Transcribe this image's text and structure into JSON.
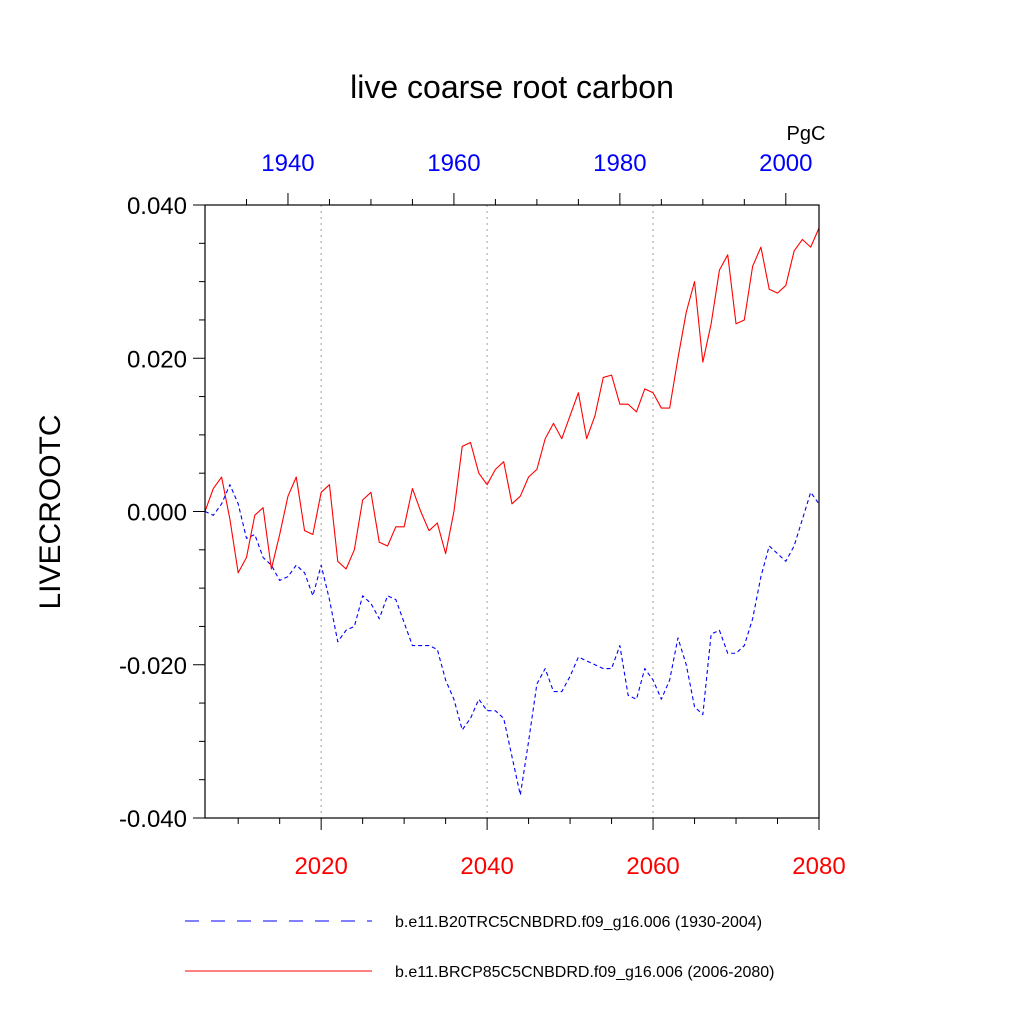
{
  "chart_data": {
    "type": "line",
    "title": "live coarse root carbon",
    "ylabel": "LIVECROOTC",
    "units": "PgC",
    "ylim": [
      -0.04,
      0.04
    ],
    "y_ticks": [
      "-0.040",
      "-0.020",
      "0.000",
      "0.020",
      "0.040"
    ],
    "y_tick_values": [
      -0.04,
      -0.02,
      0.0,
      0.02,
      0.04
    ],
    "x_bottom": {
      "range": [
        2006,
        2080
      ],
      "ticks": [
        "2020",
        "2040",
        "2060",
        "2080"
      ],
      "tick_values": [
        2020,
        2040,
        2060,
        2080
      ],
      "color": "#ff0000"
    },
    "x_top": {
      "range": [
        1930,
        2004
      ],
      "ticks": [
        "1940",
        "1960",
        "1980",
        "2000"
      ],
      "tick_values": [
        1940,
        1960,
        1980,
        2000
      ],
      "color": "#0000ff"
    },
    "gridlines_x": [
      2020,
      2040,
      2060
    ],
    "series": [
      {
        "name": "b.e11.B20TRC5CNBDRD.f09_g16.006 (1930-2004)",
        "axis": "top",
        "color": "#0000ff",
        "dash": "dashed",
        "start_year": 1930,
        "values": [
          0.0,
          -0.0005,
          0.001,
          0.0035,
          0.001,
          -0.0035,
          -0.003,
          -0.006,
          -0.007,
          -0.009,
          -0.0085,
          -0.007,
          -0.008,
          -0.011,
          -0.007,
          -0.0115,
          -0.017,
          -0.0155,
          -0.015,
          -0.011,
          -0.012,
          -0.014,
          -0.011,
          -0.0115,
          -0.0145,
          -0.0175,
          -0.0175,
          -0.0175,
          -0.018,
          -0.022,
          -0.0245,
          -0.0285,
          -0.027,
          -0.0245,
          -0.026,
          -0.026,
          -0.027,
          -0.032,
          -0.037,
          -0.03,
          -0.0225,
          -0.0205,
          -0.0235,
          -0.0235,
          -0.0215,
          -0.019,
          -0.0195,
          -0.02,
          -0.0205,
          -0.0205,
          -0.0175,
          -0.024,
          -0.0245,
          -0.0205,
          -0.022,
          -0.0245,
          -0.022,
          -0.0165,
          -0.02,
          -0.0255,
          -0.0265,
          -0.016,
          -0.0155,
          -0.0185,
          -0.0185,
          -0.0175,
          -0.014,
          -0.0085,
          -0.0045,
          -0.0055,
          -0.0065,
          -0.0045,
          -0.001,
          0.0025,
          0.001
        ]
      },
      {
        "name": "b.e11.BRCP85C5CNBDRD.f09_g16.006 (2006-2080)",
        "axis": "bottom",
        "color": "#ff0000",
        "dash": "solid",
        "start_year": 2006,
        "values": [
          0.0,
          0.003,
          0.0045,
          -0.001,
          -0.008,
          -0.006,
          -0.0005,
          0.0005,
          -0.0075,
          -0.003,
          0.002,
          0.0045,
          -0.0025,
          -0.003,
          0.0025,
          0.0035,
          -0.0065,
          -0.0075,
          -0.005,
          0.0015,
          0.0025,
          -0.004,
          -0.0045,
          -0.002,
          -0.002,
          0.003,
          0.0,
          -0.0025,
          -0.0015,
          -0.0055,
          0.0,
          0.0085,
          0.009,
          0.005,
          0.0035,
          0.0055,
          0.0065,
          0.001,
          0.002,
          0.0045,
          0.0055,
          0.0095,
          0.0115,
          0.0095,
          0.0125,
          0.0155,
          0.0095,
          0.0125,
          0.0175,
          0.0178,
          0.014,
          0.014,
          0.013,
          0.016,
          0.0155,
          0.0135,
          0.0135,
          0.02,
          0.026,
          0.03,
          0.0195,
          0.0245,
          0.0315,
          0.0335,
          0.0245,
          0.025,
          0.032,
          0.0345,
          0.029,
          0.0285,
          0.0295,
          0.034,
          0.0355,
          0.0345,
          0.037
        ]
      }
    ]
  }
}
